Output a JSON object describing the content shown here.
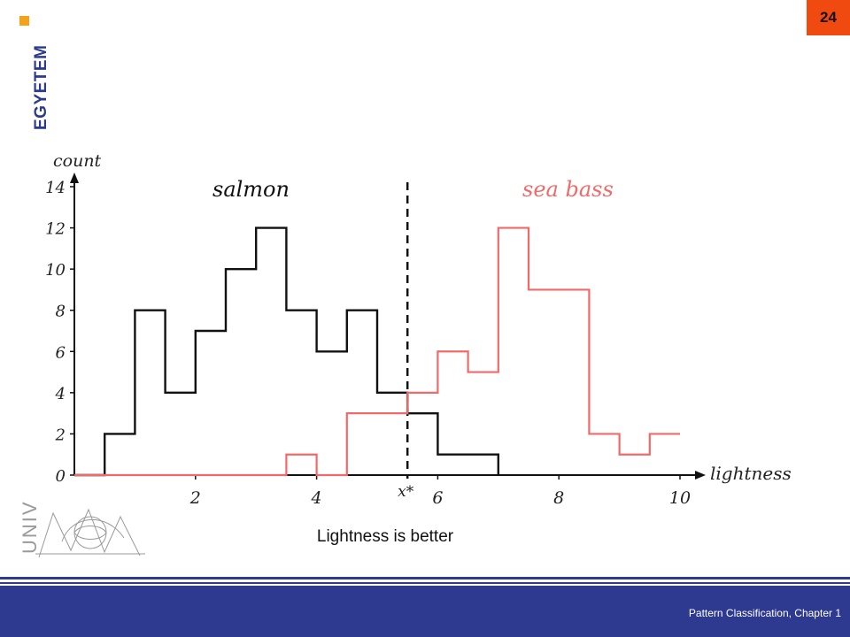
{
  "slide": {
    "number": "24",
    "brand_text": "EGYETEM",
    "univ_text": "UNIV"
  },
  "caption": "Lightness is better",
  "footer": {
    "text": "Pattern Classification, Chapter 1"
  },
  "colors": {
    "salmon": "#111111",
    "sea_bass": "#f06a6a",
    "accent": "#f04a10",
    "footer": "#2e3990"
  },
  "chart_data": {
    "type": "histogram",
    "ylabel": "count",
    "xlabel": "lightness",
    "ylim": [
      0,
      14
    ],
    "xlim": [
      0,
      10
    ],
    "y_ticks": [
      0,
      2,
      4,
      6,
      8,
      10,
      12,
      14
    ],
    "x_ticks": [
      2,
      4,
      6,
      8,
      10
    ],
    "threshold": {
      "label": "x*",
      "value": 5.5
    },
    "series": [
      {
        "name": "salmon",
        "bins": [
          [
            0.5,
            1,
            2
          ],
          [
            1,
            1.5,
            8
          ],
          [
            1.5,
            2,
            4
          ],
          [
            2,
            2.5,
            7
          ],
          [
            2.5,
            3,
            10
          ],
          [
            3,
            3.5,
            12
          ],
          [
            3.5,
            4,
            8
          ],
          [
            4,
            4.5,
            6
          ],
          [
            4.5,
            5,
            8
          ],
          [
            5,
            5.5,
            4
          ],
          [
            5.5,
            6,
            3
          ],
          [
            6,
            7,
            1
          ]
        ]
      },
      {
        "name": "sea bass",
        "bins": [
          [
            3.5,
            4,
            1
          ],
          [
            4.5,
            5.5,
            3
          ],
          [
            5.5,
            6,
            4
          ],
          [
            6,
            6.5,
            6
          ],
          [
            6.5,
            7,
            5
          ],
          [
            7,
            7.5,
            12
          ],
          [
            7.5,
            8.5,
            9
          ],
          [
            8.5,
            9,
            2
          ],
          [
            9,
            9.5,
            1
          ],
          [
            9.5,
            10,
            2
          ]
        ]
      }
    ]
  }
}
